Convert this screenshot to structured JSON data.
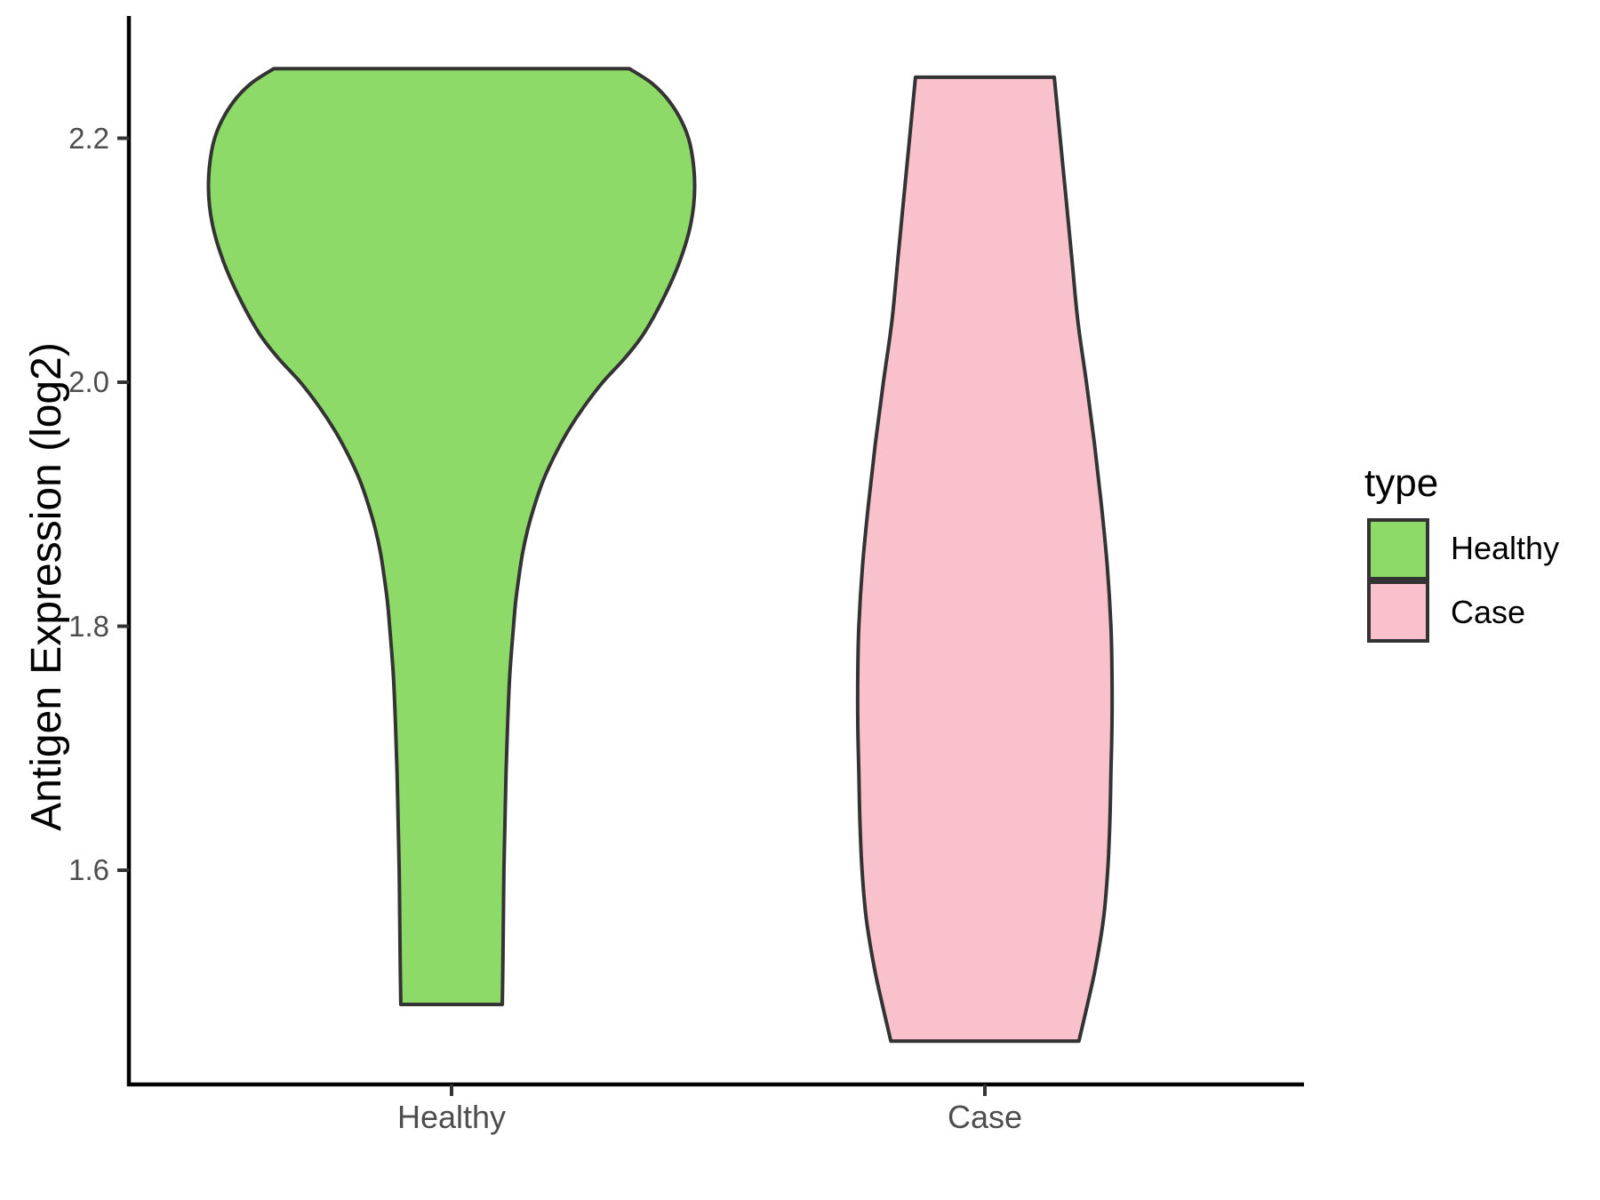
{
  "y_axis": {
    "title": "Antigen Expression (log2)",
    "tick_labels": [
      "2.2",
      "2.0",
      "1.8",
      "1.6"
    ],
    "tick_values": [
      2.2,
      2.0,
      1.8,
      1.6
    ]
  },
  "x_axis": {
    "categories": [
      "Healthy",
      "Case"
    ]
  },
  "legend": {
    "title": "type",
    "items": [
      {
        "label": "Healthy",
        "color": "#8EDA68"
      },
      {
        "label": "Case",
        "color": "#F8C1CC"
      }
    ]
  },
  "colors": {
    "healthy_fill": "#8EDA68",
    "case_fill": "#F8C1CC",
    "violin_outline": "#333333",
    "axis_line": "#000000",
    "tick_mark": "#333333",
    "tick_text": "#4d4d4d"
  },
  "chart_data": {
    "type": "violin",
    "title": "",
    "xlabel": "",
    "ylabel": "Antigen Expression (log2)",
    "categories": [
      "Healthy",
      "Case"
    ],
    "legend_title": "type",
    "legend_position": "right",
    "grid": false,
    "ylim": [
      1.42,
      2.3
    ],
    "y_ticks": [
      1.6,
      1.8,
      2.0,
      2.2
    ],
    "series": [
      {
        "name": "Healthy",
        "color": "#8EDA68",
        "data_min": 1.49,
        "data_max": 2.26,
        "mode_value": 2.16,
        "max_half_width": 0.455,
        "profile": [
          [
            2.257,
            0.333
          ],
          [
            2.245,
            0.375
          ],
          [
            2.23,
            0.408
          ],
          [
            2.21,
            0.435
          ],
          [
            2.19,
            0.449
          ],
          [
            2.16,
            0.455
          ],
          [
            2.13,
            0.448
          ],
          [
            2.1,
            0.428
          ],
          [
            2.07,
            0.398
          ],
          [
            2.04,
            0.36
          ],
          [
            2.02,
            0.325
          ],
          [
            2.0,
            0.283
          ],
          [
            1.98,
            0.248
          ],
          [
            1.96,
            0.218
          ],
          [
            1.94,
            0.193
          ],
          [
            1.92,
            0.172
          ],
          [
            1.9,
            0.156
          ],
          [
            1.88,
            0.143
          ],
          [
            1.86,
            0.133
          ],
          [
            1.84,
            0.126
          ],
          [
            1.82,
            0.12
          ],
          [
            1.8,
            0.116
          ],
          [
            1.76,
            0.109
          ],
          [
            1.72,
            0.105
          ],
          [
            1.68,
            0.102
          ],
          [
            1.64,
            0.1
          ],
          [
            1.6,
            0.098
          ],
          [
            1.56,
            0.097
          ],
          [
            1.52,
            0.096
          ],
          [
            1.49,
            0.095
          ]
        ]
      },
      {
        "name": "Case",
        "color": "#F8C1CC",
        "data_min": 1.46,
        "data_max": 2.25,
        "mode_value": 1.74,
        "max_half_width": 0.238,
        "profile": [
          [
            2.25,
            0.13
          ],
          [
            2.2,
            0.141
          ],
          [
            2.15,
            0.152
          ],
          [
            2.1,
            0.163
          ],
          [
            2.05,
            0.174
          ],
          [
            2.0,
            0.19
          ],
          [
            1.95,
            0.205
          ],
          [
            1.9,
            0.218
          ],
          [
            1.85,
            0.229
          ],
          [
            1.8,
            0.236
          ],
          [
            1.76,
            0.238
          ],
          [
            1.72,
            0.238
          ],
          [
            1.68,
            0.236
          ],
          [
            1.64,
            0.234
          ],
          [
            1.6,
            0.23
          ],
          [
            1.56,
            0.222
          ],
          [
            1.52,
            0.207
          ],
          [
            1.49,
            0.192
          ],
          [
            1.46,
            0.176
          ]
        ]
      }
    ]
  }
}
